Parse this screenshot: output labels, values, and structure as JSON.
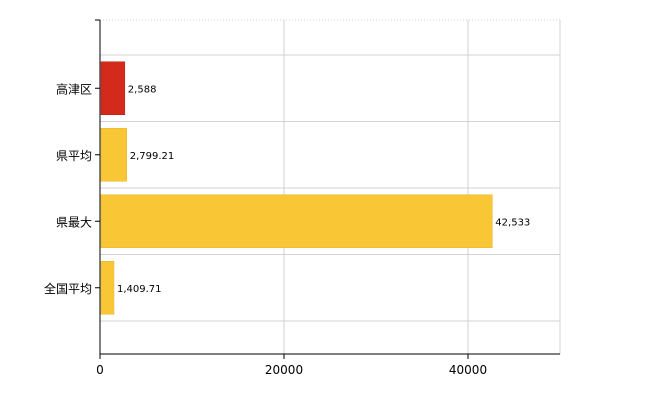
{
  "chart_data": {
    "type": "bar",
    "orientation": "horizontal",
    "categories": [
      "高津区",
      "県平均",
      "県最大",
      "全国平均"
    ],
    "values": [
      2588,
      2799.21,
      42533,
      1409.71
    ],
    "value_labels": [
      "2,588",
      "2,799.21",
      "42,533",
      "1,409.71"
    ],
    "bar_colors": [
      "#d42a1c",
      "#f9c735",
      "#f9c735",
      "#f9c735"
    ],
    "highlight_color": "#d42a1c",
    "default_color": "#f9c735",
    "xlim": [
      0,
      50000
    ],
    "x_ticks": [
      0,
      20000,
      40000
    ],
    "x_tick_labels": [
      "0",
      "20000",
      "40000"
    ],
    "vertical_grid_values": [
      20000,
      40000,
      50000
    ],
    "grid": true,
    "title": "",
    "xlabel": "",
    "ylabel": ""
  }
}
